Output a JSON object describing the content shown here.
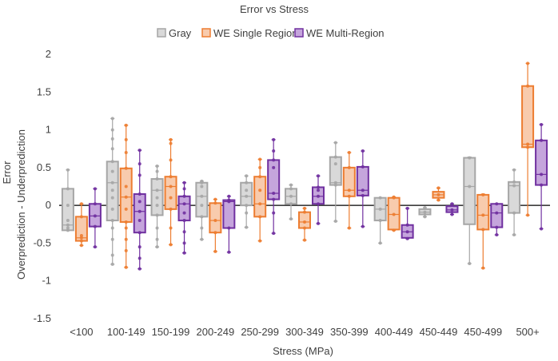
{
  "chart_data": {
    "type": "box",
    "title": "Error vs Stress",
    "xlabel": "Stress (MPa)",
    "ylabel": "Error",
    "ylabel2": "Overprediction - Underprediction",
    "ylim": [
      -1.5,
      2
    ],
    "yticks": [
      "-1.5",
      "-1",
      "-0.5",
      "0",
      "0.5",
      "1",
      "1.5",
      "2"
    ],
    "ytick_values": [
      -1.5,
      -1,
      -0.5,
      0,
      0.5,
      1,
      1.5,
      2
    ],
    "categories": [
      "<100",
      "100-149",
      "150-199",
      "200-249",
      "250-299",
      "300-349",
      "350-399",
      "400-449",
      "450-449",
      "450-499",
      "500+"
    ],
    "legend_position": "top",
    "grid": false,
    "series": [
      {
        "name": "Gray",
        "color": "#a6a6a6",
        "fill": "#d9d9d9",
        "boxes": [
          {
            "min": -0.33,
            "q1": -0.33,
            "median": -0.26,
            "q3": 0.22,
            "max": 0.47,
            "points": [
              -0.33,
              -0.3,
              -0.26,
              -0.2,
              0.0,
              0.22,
              0.47
            ]
          },
          {
            "min": -0.78,
            "q1": -0.2,
            "median": 0.3,
            "q3": 0.58,
            "max": 1.15,
            "points": [
              -0.78,
              -0.66,
              -0.45,
              -0.3,
              -0.2,
              -0.05,
              0.1,
              0.2,
              0.3,
              0.45,
              0.58,
              0.75,
              0.88,
              1.0,
              1.15
            ]
          },
          {
            "min": -0.55,
            "q1": -0.13,
            "median": 0.2,
            "q3": 0.35,
            "max": 0.52,
            "points": [
              -0.55,
              -0.45,
              -0.3,
              -0.13,
              0.0,
              0.1,
              0.2,
              0.35,
              0.45,
              0.52
            ]
          },
          {
            "min": -0.45,
            "q1": -0.15,
            "median": 0.12,
            "q3": 0.3,
            "max": 0.32,
            "points": [
              -0.45,
              -0.3,
              -0.15,
              0.0,
              0.12,
              0.25,
              0.3,
              0.32
            ]
          },
          {
            "min": -0.29,
            "q1": 0.0,
            "median": 0.12,
            "q3": 0.3,
            "max": 0.39,
            "points": [
              -0.29,
              -0.1,
              0.0,
              0.12,
              0.2,
              0.3,
              0.39
            ]
          },
          {
            "min": -0.18,
            "q1": 0.02,
            "median": 0.12,
            "q3": 0.22,
            "max": 0.27,
            "points": [
              -0.18,
              0.02,
              0.12,
              0.22,
              0.27
            ]
          },
          {
            "min": -0.21,
            "q1": 0.27,
            "median": 0.3,
            "q3": 0.64,
            "max": 0.83,
            "points": [
              -0.21,
              0.27,
              0.3,
              0.55,
              0.64,
              0.83
            ]
          },
          {
            "min": -0.5,
            "q1": -0.2,
            "median": -0.05,
            "q3": 0.1,
            "max": 0.1,
            "points": [
              -0.5,
              -0.2,
              -0.05,
              0.1
            ]
          },
          {
            "min": -0.15,
            "q1": -0.12,
            "median": -0.09,
            "q3": -0.05,
            "max": -0.03,
            "points": [
              -0.15,
              -0.09,
              -0.03
            ]
          },
          {
            "min": -0.77,
            "q1": -0.25,
            "median": 0.25,
            "q3": 0.63,
            "max": 0.64,
            "points": [
              -0.77,
              0.25,
              0.63
            ]
          },
          {
            "min": -0.39,
            "q1": -0.1,
            "median": 0.26,
            "q3": 0.31,
            "max": 0.47,
            "points": [
              -0.39,
              -0.1,
              0.26,
              0.31,
              0.47
            ]
          }
        ]
      },
      {
        "name": "WE Single Region",
        "color": "#ed7d31",
        "fill": "#f8cbad",
        "boxes": [
          {
            "min": -0.53,
            "q1": -0.47,
            "median": -0.43,
            "q3": -0.15,
            "max": 0.02,
            "points": [
              -0.53,
              -0.47,
              -0.43,
              -0.4,
              -0.15,
              0.02
            ]
          },
          {
            "min": -0.82,
            "q1": -0.22,
            "median": 0.11,
            "q3": 0.49,
            "max": 1.06,
            "points": [
              -0.82,
              -0.6,
              -0.45,
              -0.3,
              -0.22,
              -0.05,
              0.11,
              0.25,
              0.49,
              0.7,
              0.87,
              1.06
            ]
          },
          {
            "min": -0.52,
            "q1": -0.05,
            "median": 0.25,
            "q3": 0.38,
            "max": 0.87,
            "points": [
              -0.52,
              -0.3,
              -0.05,
              0.1,
              0.25,
              0.38,
              0.6,
              0.82,
              0.87
            ]
          },
          {
            "min": -0.61,
            "q1": -0.36,
            "median": -0.2,
            "q3": 0.03,
            "max": 0.08,
            "points": [
              -0.61,
              -0.36,
              -0.2,
              0.03,
              0.08
            ]
          },
          {
            "min": -0.47,
            "q1": -0.15,
            "median": 0.02,
            "q3": 0.38,
            "max": 0.61,
            "points": [
              -0.47,
              -0.15,
              0.02,
              0.2,
              0.38,
              0.5,
              0.61
            ]
          },
          {
            "min": -0.46,
            "q1": -0.3,
            "median": -0.22,
            "q3": -0.09,
            "max": -0.04,
            "points": [
              -0.46,
              -0.3,
              -0.22,
              -0.09,
              -0.04
            ]
          },
          {
            "min": -0.3,
            "q1": 0.12,
            "median": 0.2,
            "q3": 0.5,
            "max": 0.7,
            "points": [
              -0.3,
              0.12,
              0.2,
              0.5,
              0.7
            ]
          },
          {
            "min": -0.33,
            "q1": -0.32,
            "median": -0.12,
            "q3": 0.1,
            "max": 0.11,
            "points": [
              -0.33,
              -0.12,
              0.1,
              0.11
            ]
          },
          {
            "min": 0.07,
            "q1": 0.1,
            "median": 0.14,
            "q3": 0.18,
            "max": 0.23,
            "points": [
              0.07,
              0.14,
              0.23
            ]
          },
          {
            "min": -0.83,
            "q1": -0.32,
            "median": -0.13,
            "q3": 0.14,
            "max": 0.15,
            "points": [
              -0.83,
              -0.32,
              -0.13,
              0.14
            ]
          },
          {
            "min": -0.13,
            "q1": 0.77,
            "median": 0.81,
            "q3": 1.58,
            "max": 1.88,
            "points": [
              -0.13,
              0.77,
              0.81,
              1.58,
              1.88
            ]
          }
        ]
      },
      {
        "name": "WE Multi-Region",
        "color": "#7030a0",
        "fill": "#c5a5dc",
        "boxes": [
          {
            "min": -0.55,
            "q1": -0.28,
            "median": -0.14,
            "q3": 0.02,
            "max": 0.22,
            "points": [
              -0.55,
              -0.28,
              -0.14,
              0.02,
              0.22
            ]
          },
          {
            "min": -0.84,
            "q1": -0.36,
            "median": -0.08,
            "q3": 0.15,
            "max": 0.73,
            "points": [
              -0.84,
              -0.7,
              -0.55,
              -0.36,
              -0.2,
              -0.08,
              0.05,
              0.15,
              0.4,
              0.55,
              0.73
            ]
          },
          {
            "min": -0.63,
            "q1": -0.2,
            "median": 0.02,
            "q3": 0.12,
            "max": 0.3,
            "points": [
              -0.63,
              -0.5,
              -0.35,
              -0.2,
              -0.1,
              0.02,
              0.12,
              0.22,
              0.3
            ]
          },
          {
            "min": -0.62,
            "q1": -0.3,
            "median": 0.05,
            "q3": 0.07,
            "max": 0.12,
            "points": [
              -0.62,
              -0.3,
              0.05,
              0.07,
              0.12
            ]
          },
          {
            "min": -0.37,
            "q1": 0.08,
            "median": 0.16,
            "q3": 0.6,
            "max": 0.87,
            "points": [
              -0.37,
              -0.1,
              0.08,
              0.16,
              0.5,
              0.6,
              0.72,
              0.87
            ]
          },
          {
            "min": -0.24,
            "q1": 0.02,
            "median": 0.12,
            "q3": 0.24,
            "max": 0.39,
            "points": [
              -0.24,
              0.02,
              0.12,
              0.2,
              0.24,
              0.39
            ]
          },
          {
            "min": -0.28,
            "q1": 0.13,
            "median": 0.2,
            "q3": 0.51,
            "max": 0.72,
            "points": [
              -0.28,
              0.13,
              0.2,
              0.51,
              0.72
            ]
          },
          {
            "min": -0.44,
            "q1": -0.43,
            "median": -0.35,
            "q3": -0.26,
            "max": -0.04,
            "points": [
              -0.44,
              -0.35,
              -0.26,
              -0.04
            ]
          },
          {
            "min": -0.12,
            "q1": -0.09,
            "median": -0.06,
            "q3": -0.01,
            "max": 0.02,
            "points": [
              -0.12,
              -0.06,
              0.02
            ]
          },
          {
            "min": -0.39,
            "q1": -0.29,
            "median": -0.1,
            "q3": 0.02,
            "max": 0.02,
            "points": [
              -0.39,
              -0.29,
              -0.1,
              0.02
            ]
          },
          {
            "min": -0.31,
            "q1": 0.27,
            "median": 0.41,
            "q3": 0.86,
            "max": 1.07,
            "points": [
              -0.31,
              0.27,
              0.41,
              0.86,
              1.07
            ]
          }
        ]
      }
    ]
  }
}
